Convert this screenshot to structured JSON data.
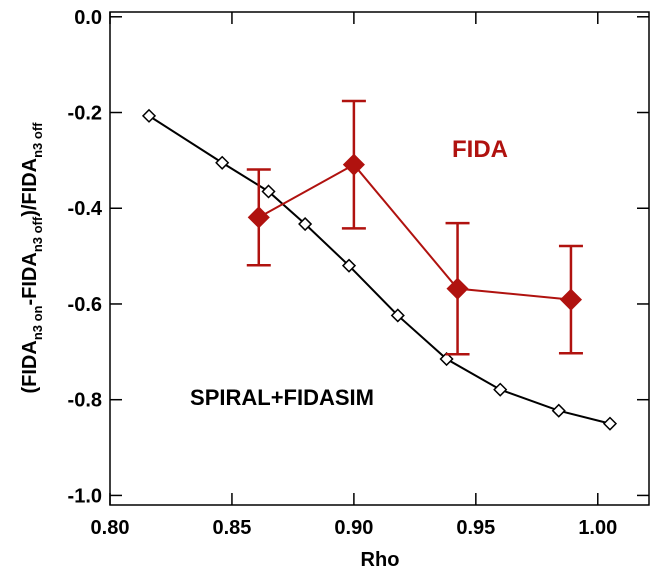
{
  "chart_data": {
    "type": "line",
    "xlabel": "Rho",
    "ylabel": [
      {
        "text": "(FIDA"
      },
      {
        "text": "n3 on",
        "sub": true
      },
      {
        "text": "-FIDA"
      },
      {
        "text": "n3 off",
        "sub": true
      },
      {
        "text": ")/FIDA"
      },
      {
        "text": "n3 off",
        "sub": true
      }
    ],
    "xlim": [
      0.8,
      1.021
    ],
    "ylim": [
      -1.02,
      0.01
    ],
    "xticks": [
      {
        "value": 0.8,
        "label": "0.80"
      },
      0.85,
      {
        "value": 0.9,
        "label": "0.90"
      },
      0.95,
      {
        "value": 1.0,
        "label": "1.00"
      }
    ],
    "yticks": [
      {
        "value": 0,
        "label": "0.0"
      },
      -0.2,
      -0.4,
      -0.6,
      -0.8,
      {
        "value": -1.0,
        "label": "-1.0"
      }
    ],
    "series": [
      {
        "name": "SPIRAL+FIDASIM",
        "color": "#000000",
        "marker": "open-diamond",
        "x": [
          0.816,
          0.846,
          0.865,
          0.88,
          0.898,
          0.918,
          0.938,
          0.96,
          0.984,
          1.005
        ],
        "values": [
          -0.207,
          -0.305,
          -0.365,
          -0.433,
          -0.52,
          -0.624,
          -0.715,
          -0.779,
          -0.823,
          -0.85
        ]
      },
      {
        "name": "FIDA",
        "color": "#b0120f",
        "marker": "filled-diamond",
        "x": [
          0.861,
          0.9,
          0.9425,
          0.989
        ],
        "values": [
          -0.419,
          -0.309,
          -0.568,
          -0.591
        ],
        "errors": [
          0.1,
          0.133,
          0.137,
          0.112
        ]
      }
    ]
  }
}
